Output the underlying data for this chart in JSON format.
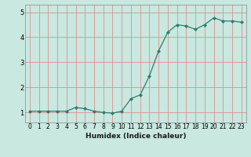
{
  "x": [
    0,
    1,
    2,
    3,
    4,
    5,
    6,
    7,
    8,
    9,
    10,
    11,
    12,
    13,
    14,
    15,
    16,
    17,
    18,
    19,
    20,
    21,
    22,
    23
  ],
  "y": [
    1.05,
    1.05,
    1.05,
    1.05,
    1.05,
    1.2,
    1.15,
    1.05,
    1.0,
    0.97,
    1.05,
    1.55,
    1.7,
    2.45,
    3.45,
    4.2,
    4.5,
    4.45,
    4.32,
    4.5,
    4.78,
    4.65,
    4.65,
    4.6
  ],
  "xlabel": "Humidex (Indice chaleur)",
  "ylim": [
    0.6,
    5.3
  ],
  "xlim": [
    -0.5,
    23.5
  ],
  "yticks": [
    1,
    2,
    3,
    4,
    5
  ],
  "xticks": [
    0,
    1,
    2,
    3,
    4,
    5,
    6,
    7,
    8,
    9,
    10,
    11,
    12,
    13,
    14,
    15,
    16,
    17,
    18,
    19,
    20,
    21,
    22,
    23
  ],
  "line_color": "#2E7D6E",
  "marker_color": "#2E7D6E",
  "bg_color": "#C8E8E0",
  "grid_color": "#E08080",
  "axis_bg": "#C8E8E0",
  "tick_fontsize": 5.5,
  "xlabel_fontsize": 6.5
}
